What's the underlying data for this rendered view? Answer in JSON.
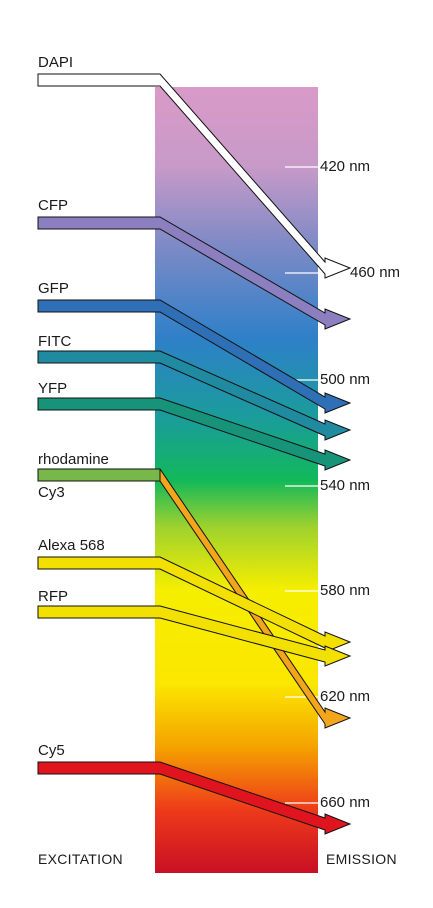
{
  "footer": {
    "excitation": "EXCITATION",
    "emission": "EMISSION"
  },
  "wavelength_ticks": [
    {
      "label": "420 nm",
      "nm": 420
    },
    {
      "label": "460 nm",
      "nm": 460
    },
    {
      "label": "500 nm",
      "nm": 500
    },
    {
      "label": "540 nm",
      "nm": 540
    },
    {
      "label": "580 nm",
      "nm": 580
    },
    {
      "label": "620 nm",
      "nm": 620
    },
    {
      "label": "660 nm",
      "nm": 660
    }
  ],
  "fluorophores": [
    {
      "name": "DAPI",
      "color": "#ffffff"
    },
    {
      "name": "CFP",
      "color": "#8b7fc0"
    },
    {
      "name": "GFP",
      "color": "#2f6fb6"
    },
    {
      "name": "FITC",
      "color": "#1f8aa0"
    },
    {
      "name": "YFP",
      "color": "#17937a"
    },
    {
      "name": "rhodamine",
      "color": "#78b84a"
    },
    {
      "name": "Cy3",
      "color": "#f3a51c"
    },
    {
      "name": "Alexa 568",
      "color": "#f3e000"
    },
    {
      "name": "RFP",
      "color": "#f2e000"
    },
    {
      "name": "Cy5",
      "color": "#e0141e"
    }
  ],
  "spectrum_colors": {
    "violet": "#d99ac8",
    "blue": "#2e80c8",
    "green": "#12b85a",
    "yellow": "#f6ee00",
    "orange": "#f5a200",
    "red": "#c81024"
  }
}
